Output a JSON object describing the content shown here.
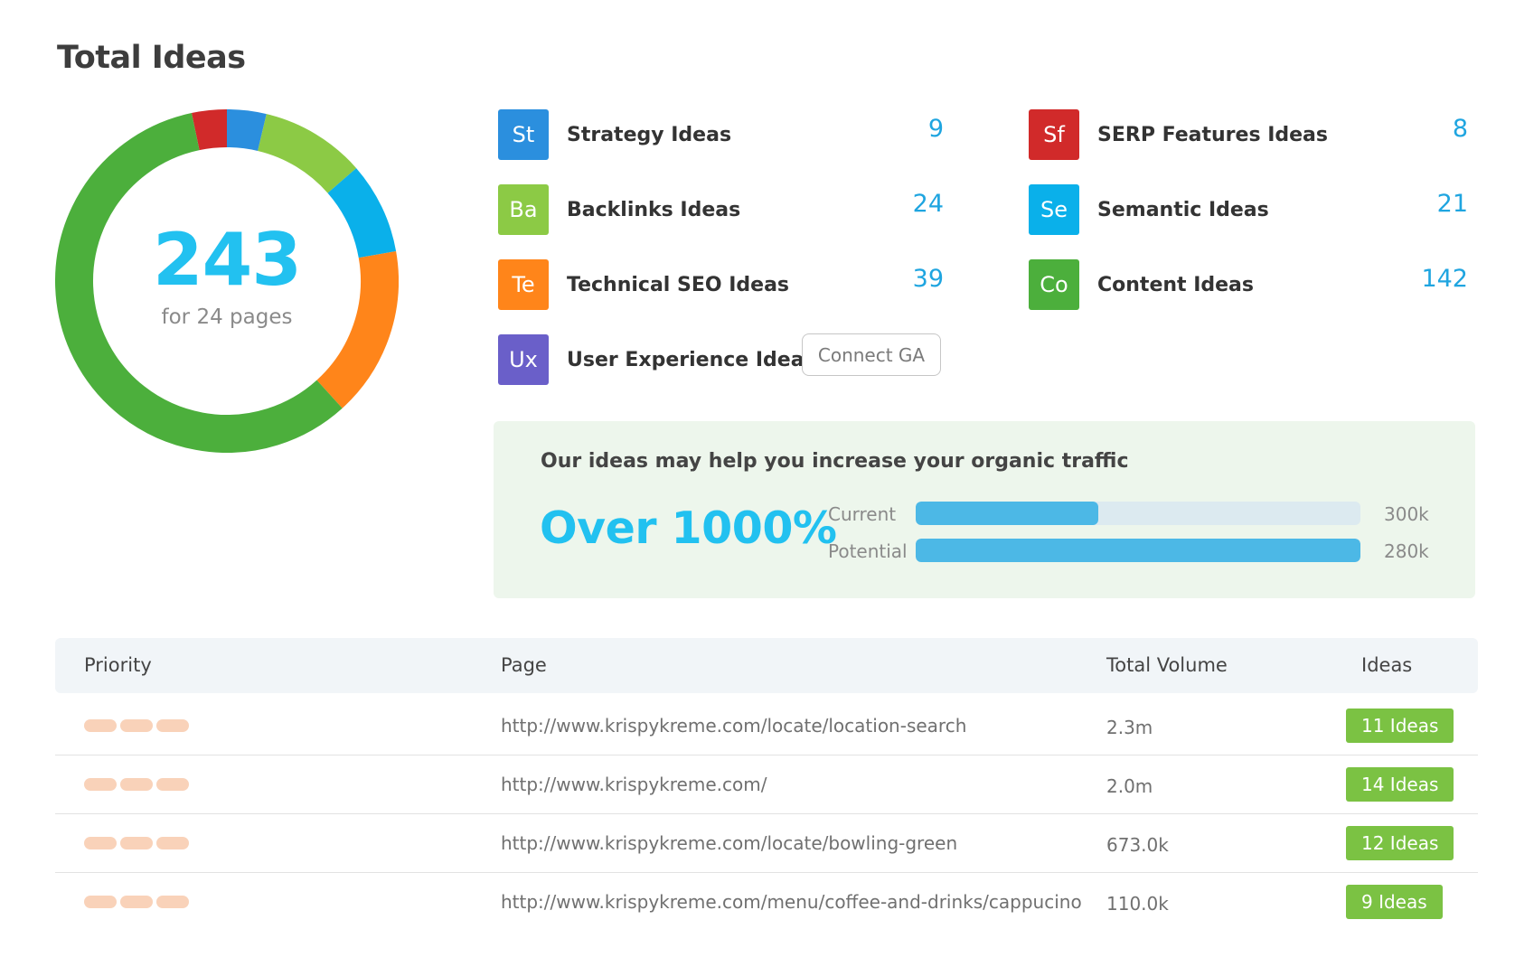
{
  "title": "Total Ideas",
  "donut": {
    "total": "243",
    "subtitle": "for 24 pages",
    "segments": [
      {
        "name": "SERP Features Ideas",
        "value": 8,
        "color": "#d12a2a"
      },
      {
        "name": "Strategy Ideas",
        "value": 9,
        "color": "#2b8fde"
      },
      {
        "name": "Backlinks Ideas",
        "value": 24,
        "color": "#8cca45"
      },
      {
        "name": "Semantic Ideas",
        "value": 21,
        "color": "#0ab0ea"
      },
      {
        "name": "Technical SEO Ideas",
        "value": 39,
        "color": "#ff851a"
      },
      {
        "name": "Content Ideas",
        "value": 142,
        "color": "#4caf3c"
      }
    ]
  },
  "categories": [
    {
      "abbr": "St",
      "label": "Strategy Ideas",
      "count": "9",
      "color": "#2b8fde"
    },
    {
      "abbr": "Ba",
      "label": "Backlinks Ideas",
      "count": "24",
      "color": "#8cca45"
    },
    {
      "abbr": "Te",
      "label": "Technical SEO Ideas",
      "count": "39",
      "color": "#ff851a"
    },
    {
      "abbr": "Ux",
      "label": "User Experience Ideas",
      "count": "",
      "color": "#6a5fc9"
    },
    {
      "abbr": "Sf",
      "label": "SERP Features Ideas",
      "count": "8",
      "color": "#d12a2a"
    },
    {
      "abbr": "Se",
      "label": "Semantic Ideas",
      "count": "21",
      "color": "#0ab0ea"
    },
    {
      "abbr": "Co",
      "label": "Content Ideas",
      "count": "142",
      "color": "#4caf3c"
    }
  ],
  "connect_ga_label": "Connect GA",
  "traffic": {
    "headline": "Our ideas may help you increase your organic traffic",
    "big": "Over 1000%",
    "current_label": "Current",
    "current_value": "300k",
    "current_fill": 0.41,
    "potential_label": "Potential",
    "potential_value": "280k",
    "potential_fill": 1.0
  },
  "table": {
    "headers": {
      "priority": "Priority",
      "page": "Page",
      "volume": "Total Volume",
      "ideas": "Ideas"
    },
    "rows": [
      {
        "url": "http://www.krispykreme.com/locate/location-search",
        "volume": "2.3m",
        "ideas": "11 Ideas"
      },
      {
        "url": "http://www.krispykreme.com/",
        "volume": "2.0m",
        "ideas": "14 Ideas"
      },
      {
        "url": "http://www.krispykreme.com/locate/bowling-green",
        "volume": "673.0k",
        "ideas": "12 Ideas"
      },
      {
        "url": "http://www.krispykreme.com/menu/coffee-and-drinks/cappucino",
        "volume": "110.0k",
        "ideas": "9 Ideas"
      }
    ]
  }
}
